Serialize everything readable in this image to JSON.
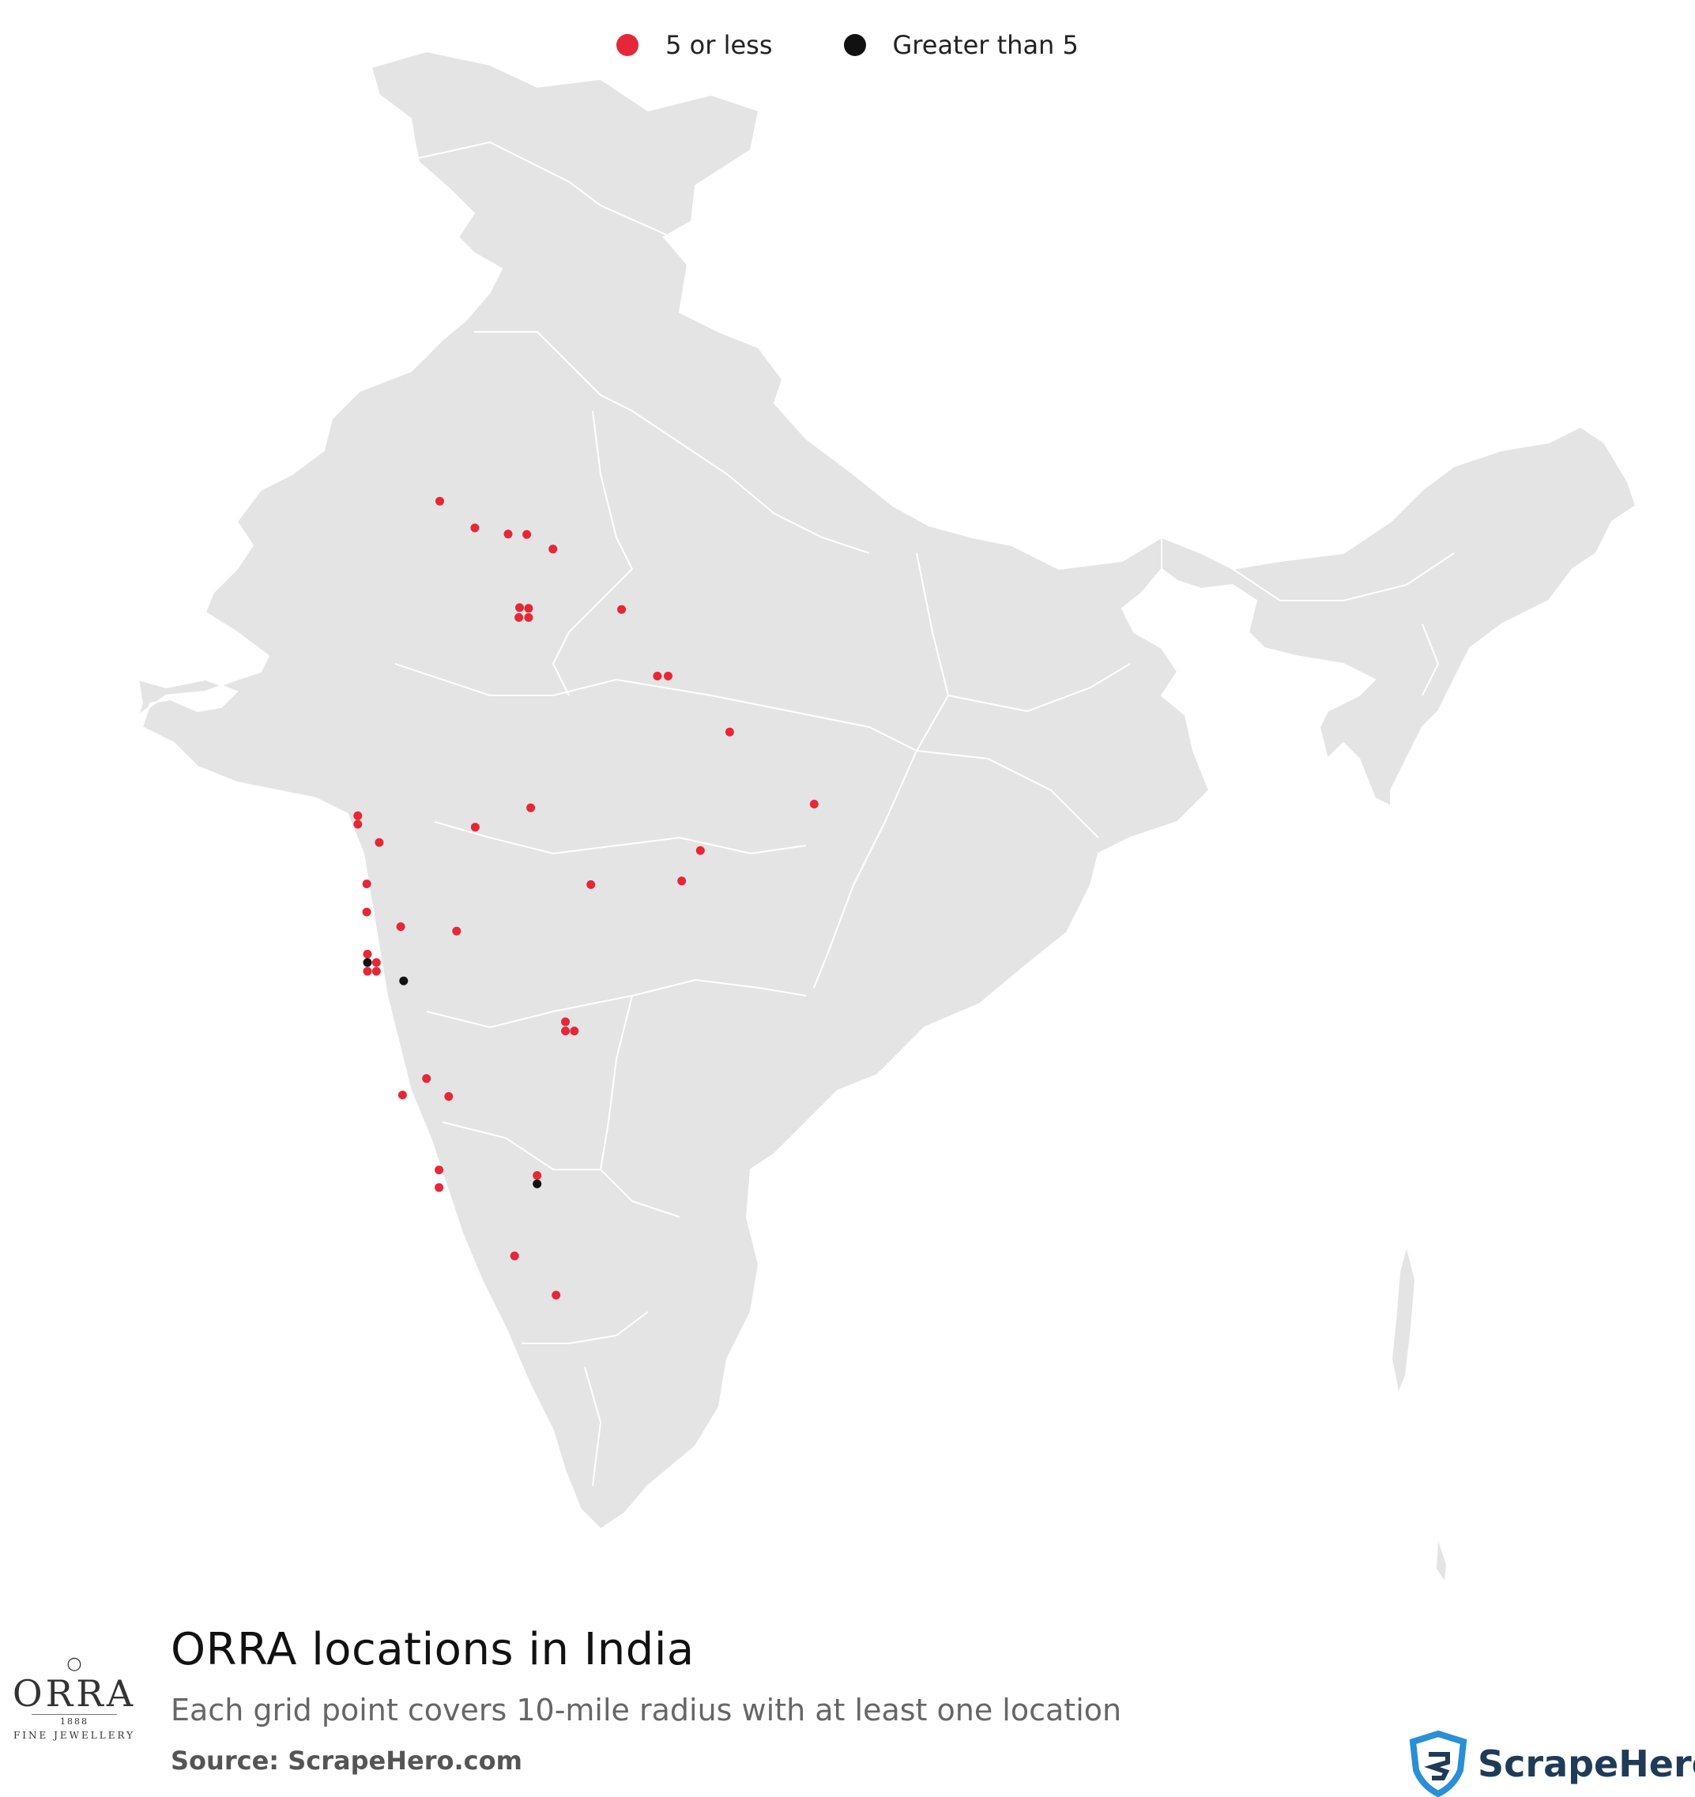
{
  "legend": {
    "items": [
      {
        "label": "5 or less",
        "color": "#e62737"
      },
      {
        "label": "Greater than 5",
        "color": "#111111"
      }
    ]
  },
  "title": "ORRA locations in India",
  "subtitle": "Each grid point covers 10-mile radius with at least one location",
  "source": "Source: ScrapeHero.com",
  "brand": {
    "name": "ORRA",
    "year": "1888",
    "tagline": "FINE JEWELLERY"
  },
  "watermark_brand": "ScrapeHero",
  "colors": {
    "land": "#e4e4e4",
    "borders": "#ffffff",
    "small": "#e62737",
    "large": "#111111",
    "watermark": "#cfd8df"
  },
  "map": {
    "region": "India",
    "points": [
      {
        "lat": 31.63,
        "lon": 74.87,
        "cat": "small"
      },
      {
        "lat": 30.9,
        "lon": 75.85,
        "cat": "small"
      },
      {
        "lat": 30.73,
        "lon": 76.78,
        "cat": "small"
      },
      {
        "lat": 30.72,
        "lon": 77.3,
        "cat": "small"
      },
      {
        "lat": 30.32,
        "lon": 78.03,
        "cat": "small"
      },
      {
        "lat": 28.67,
        "lon": 79.95,
        "cat": "small"
      },
      {
        "lat": 28.72,
        "lon": 77.1,
        "cat": "small"
      },
      {
        "lat": 28.7,
        "lon": 77.35,
        "cat": "small"
      },
      {
        "lat": 28.45,
        "lon": 77.08,
        "cat": "small"
      },
      {
        "lat": 28.45,
        "lon": 77.35,
        "cat": "small"
      },
      {
        "lat": 26.85,
        "lon": 80.95,
        "cat": "small"
      },
      {
        "lat": 26.85,
        "lon": 81.25,
        "cat": "small"
      },
      {
        "lat": 25.32,
        "lon": 82.97,
        "cat": "small"
      },
      {
        "lat": 23.35,
        "lon": 85.33,
        "cat": "small"
      },
      {
        "lat": 23.25,
        "lon": 77.41,
        "cat": "small"
      },
      {
        "lat": 22.72,
        "lon": 75.86,
        "cat": "small"
      },
      {
        "lat": 23.03,
        "lon": 72.58,
        "cat": "small"
      },
      {
        "lat": 22.8,
        "lon": 72.58,
        "cat": "small"
      },
      {
        "lat": 22.3,
        "lon": 73.18,
        "cat": "small"
      },
      {
        "lat": 21.25,
        "lon": 81.63,
        "cat": "small"
      },
      {
        "lat": 22.08,
        "lon": 82.15,
        "cat": "small"
      },
      {
        "lat": 21.15,
        "lon": 79.09,
        "cat": "small"
      },
      {
        "lat": 21.17,
        "lon": 72.83,
        "cat": "small"
      },
      {
        "lat": 20.0,
        "lon": 73.78,
        "cat": "small"
      },
      {
        "lat": 20.4,
        "lon": 72.83,
        "cat": "small"
      },
      {
        "lat": 19.88,
        "lon": 75.34,
        "cat": "small"
      },
      {
        "lat": 19.25,
        "lon": 72.85,
        "cat": "small"
      },
      {
        "lat": 19.02,
        "lon": 72.85,
        "cat": "large"
      },
      {
        "lat": 19.02,
        "lon": 73.1,
        "cat": "small"
      },
      {
        "lat": 18.78,
        "lon": 72.85,
        "cat": "small"
      },
      {
        "lat": 18.78,
        "lon": 73.1,
        "cat": "small"
      },
      {
        "lat": 18.52,
        "lon": 73.86,
        "cat": "large"
      },
      {
        "lat": 17.4,
        "lon": 78.38,
        "cat": "small"
      },
      {
        "lat": 17.15,
        "lon": 78.38,
        "cat": "small"
      },
      {
        "lat": 17.15,
        "lon": 78.63,
        "cat": "small"
      },
      {
        "lat": 15.85,
        "lon": 74.5,
        "cat": "small"
      },
      {
        "lat": 15.4,
        "lon": 73.83,
        "cat": "small"
      },
      {
        "lat": 15.36,
        "lon": 75.12,
        "cat": "small"
      },
      {
        "lat": 13.35,
        "lon": 74.85,
        "cat": "small"
      },
      {
        "lat": 12.87,
        "lon": 74.85,
        "cat": "small"
      },
      {
        "lat": 13.2,
        "lon": 77.59,
        "cat": "small"
      },
      {
        "lat": 12.97,
        "lon": 77.59,
        "cat": "large"
      },
      {
        "lat": 11.0,
        "lon": 76.96,
        "cat": "small"
      },
      {
        "lat": 9.93,
        "lon": 78.12,
        "cat": "small"
      }
    ]
  }
}
